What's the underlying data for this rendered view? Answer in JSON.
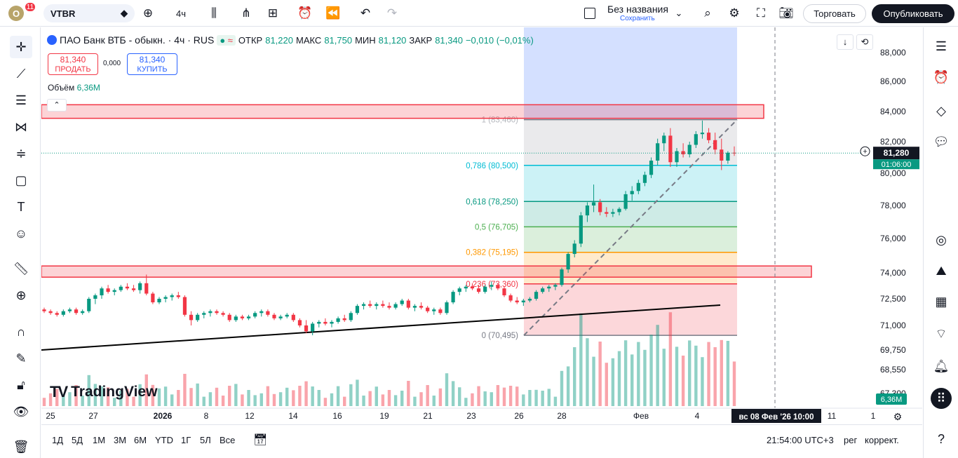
{
  "topbar": {
    "logo_letter": "O",
    "notification_count": "11",
    "symbol": "VTBR",
    "interval": "4ч",
    "layout_name": "Без названия",
    "save_label": "Сохранить",
    "trade_button": "Торговать",
    "publish_button": "Опубликовать"
  },
  "legend": {
    "title": "ПАО Банк ВТБ - обыкн. · 4ч · RUS",
    "open_label": "ОТКР",
    "open": "81,220",
    "high_label": "МАКС",
    "high": "81,750",
    "low_label": "МИН",
    "low": "81,120",
    "close_label": "ЗАКР",
    "close": "81,340",
    "change": "−0,010 (−0,01%)"
  },
  "trade": {
    "sell_price": "81,340",
    "sell_label": "ПРОДАТЬ",
    "spread": "0,000",
    "buy_price": "81,340",
    "buy_label": "КУПИТЬ"
  },
  "volume": {
    "label": "Объём",
    "value": "6,36M"
  },
  "watermark": "TradingView",
  "price_badge": {
    "value": "81,280",
    "countdown": "01:06:00"
  },
  "volume_badge": "6,36M",
  "crosshair_date": "вс 08 Фев '26   10:00",
  "bottombar": {
    "ranges": [
      "1Д",
      "5Д",
      "1М",
      "3М",
      "6М",
      "YTD",
      "1Г",
      "5Л",
      "Все"
    ],
    "time": "21:54:00 UTC+3",
    "session": "рег",
    "adjust": "коррект."
  },
  "colors": {
    "up": "#089981",
    "down": "#f23645",
    "fib_786": "#00bcd4",
    "fib_618": "#089981",
    "fib_5": "#4caf50",
    "fib_382": "#ff9800",
    "fib_236": "#f23645",
    "zone": "#f23645"
  },
  "chart_data": {
    "type": "candlestick",
    "symbol": "VTBR",
    "x_ticks": [
      "25",
      "27",
      "2026",
      "8",
      "12",
      "14",
      "16",
      "19",
      "21",
      "23",
      "26",
      "28",
      "Фев",
      "4",
      "11",
      "1"
    ],
    "y_ticks": [
      "88,000",
      "86,000",
      "84,000",
      "82,000",
      "80,000",
      "78,000",
      "76,000",
      "74,000",
      "72,500",
      "71,000",
      "69,750",
      "68,550",
      "67,300"
    ],
    "ylim": [
      67.0,
      89.0
    ],
    "last_price": 81.28,
    "fibonacci": [
      {
        "level": "1",
        "price": 83.46,
        "label": "1 (83,460)"
      },
      {
        "level": "0.786",
        "price": 80.5,
        "label": "0,786 (80,500)"
      },
      {
        "level": "0.618",
        "price": 78.25,
        "label": "0,618 (78,250)"
      },
      {
        "level": "0.5",
        "price": 76.705,
        "label": "0,5 (76,705)"
      },
      {
        "level": "0.382",
        "price": 75.195,
        "label": "0,382 (75,195)"
      },
      {
        "level": "0.236",
        "price": 73.36,
        "label": "0,236 (73,360)"
      },
      {
        "level": "0",
        "price": 70.495,
        "label": "0 (70,495)"
      }
    ],
    "zones": [
      {
        "from": 83.55,
        "to": 84.45
      },
      {
        "from": 73.75,
        "to": 74.4
      }
    ],
    "candles": [
      [
        71.9,
        72.0,
        71.7,
        71.8
      ],
      [
        71.8,
        71.9,
        71.6,
        71.7
      ],
      [
        71.7,
        71.8,
        71.5,
        71.6
      ],
      [
        71.6,
        71.9,
        71.5,
        71.8
      ],
      [
        71.8,
        72.0,
        71.7,
        71.9
      ],
      [
        71.9,
        72.0,
        71.6,
        71.7
      ],
      [
        71.7,
        71.9,
        71.6,
        71.8
      ],
      [
        71.8,
        72.6,
        71.7,
        72.5
      ],
      [
        72.5,
        72.8,
        72.2,
        72.7
      ],
      [
        72.7,
        73.2,
        72.5,
        73.1
      ],
      [
        73.1,
        73.3,
        72.8,
        72.9
      ],
      [
        72.9,
        73.1,
        72.7,
        73.0
      ],
      [
        73.0,
        73.3,
        72.9,
        73.2
      ],
      [
        73.2,
        73.4,
        73.0,
        73.1
      ],
      [
        73.1,
        73.3,
        72.9,
        73.0
      ],
      [
        73.0,
        73.5,
        72.8,
        73.4
      ],
      [
        73.4,
        73.9,
        72.7,
        72.8
      ],
      [
        72.8,
        72.9,
        72.2,
        72.3
      ],
      [
        72.3,
        72.6,
        72.2,
        72.5
      ],
      [
        72.5,
        72.7,
        72.3,
        72.6
      ],
      [
        72.6,
        72.8,
        72.4,
        72.7
      ],
      [
        72.7,
        72.9,
        72.5,
        72.6
      ],
      [
        72.6,
        72.7,
        71.5,
        71.6
      ],
      [
        71.6,
        71.8,
        71.0,
        71.3
      ],
      [
        71.3,
        71.7,
        71.2,
        71.6
      ],
      [
        71.6,
        71.8,
        71.4,
        71.7
      ],
      [
        71.7,
        71.9,
        71.5,
        71.8
      ],
      [
        71.8,
        71.9,
        71.6,
        71.7
      ],
      [
        71.7,
        71.8,
        71.5,
        71.6
      ],
      [
        71.6,
        71.7,
        71.2,
        71.3
      ],
      [
        71.3,
        71.6,
        71.2,
        71.5
      ],
      [
        71.5,
        71.6,
        71.3,
        71.4
      ],
      [
        71.4,
        71.6,
        71.3,
        71.5
      ],
      [
        71.5,
        71.8,
        71.4,
        71.7
      ],
      [
        71.7,
        71.9,
        71.5,
        71.8
      ],
      [
        71.8,
        71.9,
        71.5,
        71.6
      ],
      [
        71.6,
        71.7,
        71.3,
        71.4
      ],
      [
        71.4,
        71.6,
        71.3,
        71.5
      ],
      [
        71.5,
        71.7,
        71.4,
        71.6
      ],
      [
        71.6,
        71.7,
        71.2,
        71.3
      ],
      [
        71.3,
        71.4,
        70.9,
        71.0
      ],
      [
        71.0,
        71.3,
        70.6,
        70.7
      ],
      [
        70.7,
        71.2,
        70.5,
        71.1
      ],
      [
        71.1,
        71.3,
        70.9,
        71.2
      ],
      [
        71.2,
        71.4,
        71.0,
        71.1
      ],
      [
        71.1,
        71.3,
        70.9,
        71.2
      ],
      [
        71.2,
        71.5,
        71.1,
        71.4
      ],
      [
        71.4,
        71.6,
        71.2,
        71.3
      ],
      [
        71.3,
        71.8,
        71.2,
        71.7
      ],
      [
        71.7,
        72.2,
        71.6,
        72.1
      ],
      [
        72.1,
        72.3,
        71.9,
        72.2
      ],
      [
        72.2,
        72.4,
        72.0,
        72.1
      ],
      [
        72.1,
        72.3,
        71.9,
        72.2
      ],
      [
        72.2,
        72.4,
        72.0,
        72.1
      ],
      [
        72.1,
        72.3,
        71.9,
        72.0
      ],
      [
        72.0,
        72.3,
        71.9,
        72.2
      ],
      [
        72.2,
        72.5,
        72.1,
        72.4
      ],
      [
        72.4,
        72.5,
        71.9,
        72.0
      ],
      [
        72.0,
        72.2,
        71.8,
        72.1
      ],
      [
        72.1,
        72.3,
        71.9,
        72.0
      ],
      [
        72.0,
        72.1,
        71.7,
        71.8
      ],
      [
        71.8,
        72.0,
        71.6,
        71.9
      ],
      [
        71.9,
        72.0,
        71.6,
        71.7
      ],
      [
        71.7,
        72.4,
        71.6,
        72.3
      ],
      [
        72.3,
        73.0,
        72.2,
        72.9
      ],
      [
        72.9,
        73.2,
        72.7,
        73.1
      ],
      [
        73.1,
        73.3,
        72.9,
        73.2
      ],
      [
        73.2,
        73.4,
        73.0,
        73.1
      ],
      [
        73.1,
        73.3,
        72.8,
        72.9
      ],
      [
        72.9,
        73.3,
        72.8,
        73.2
      ],
      [
        73.2,
        73.5,
        73.0,
        73.3
      ],
      [
        73.3,
        73.4,
        73.0,
        73.1
      ],
      [
        73.1,
        73.2,
        72.6,
        72.7
      ],
      [
        72.7,
        72.8,
        72.3,
        72.4
      ],
      [
        72.4,
        72.6,
        72.2,
        72.3
      ],
      [
        72.3,
        72.5,
        72.1,
        72.4
      ],
      [
        72.4,
        72.6,
        72.3,
        72.5
      ],
      [
        72.5,
        73.0,
        72.4,
        72.9
      ],
      [
        72.9,
        73.2,
        72.8,
        73.1
      ],
      [
        73.1,
        73.3,
        72.9,
        73.2
      ],
      [
        73.2,
        73.4,
        73.0,
        73.3
      ],
      [
        73.3,
        74.3,
        73.2,
        74.2
      ],
      [
        74.2,
        75.2,
        74.0,
        75.1
      ],
      [
        75.1,
        75.9,
        74.9,
        75.7
      ],
      [
        75.7,
        77.6,
        75.5,
        77.4
      ],
      [
        77.4,
        78.2,
        77.0,
        78.0
      ],
      [
        78.0,
        79.3,
        77.6,
        78.2
      ],
      [
        78.2,
        78.4,
        77.4,
        77.6
      ],
      [
        77.6,
        77.9,
        77.3,
        77.5
      ],
      [
        77.5,
        77.8,
        77.3,
        77.6
      ],
      [
        77.6,
        77.9,
        77.4,
        77.8
      ],
      [
        77.8,
        78.9,
        77.7,
        78.7
      ],
      [
        78.7,
        79.2,
        78.3,
        78.9
      ],
      [
        78.9,
        79.6,
        78.7,
        79.4
      ],
      [
        79.4,
        80.1,
        79.2,
        79.9
      ],
      [
        79.9,
        81.0,
        79.7,
        80.8
      ],
      [
        80.8,
        82.2,
        80.5,
        81.9
      ],
      [
        81.9,
        82.6,
        81.4,
        82.4
      ],
      [
        82.4,
        82.9,
        80.4,
        80.7
      ],
      [
        80.7,
        81.6,
        80.4,
        81.4
      ],
      [
        81.4,
        81.9,
        81.0,
        81.2
      ],
      [
        81.2,
        82.0,
        81.0,
        81.8
      ],
      [
        81.8,
        82.7,
        81.6,
        82.5
      ],
      [
        82.5,
        83.4,
        82.2,
        82.6
      ],
      [
        82.6,
        82.9,
        81.9,
        82.1
      ],
      [
        82.1,
        82.6,
        81.2,
        81.5
      ],
      [
        81.5,
        82.2,
        80.2,
        80.8
      ],
      [
        80.8,
        81.4,
        80.6,
        81.3
      ],
      [
        81.3,
        81.7,
        81.1,
        81.28
      ]
    ]
  }
}
